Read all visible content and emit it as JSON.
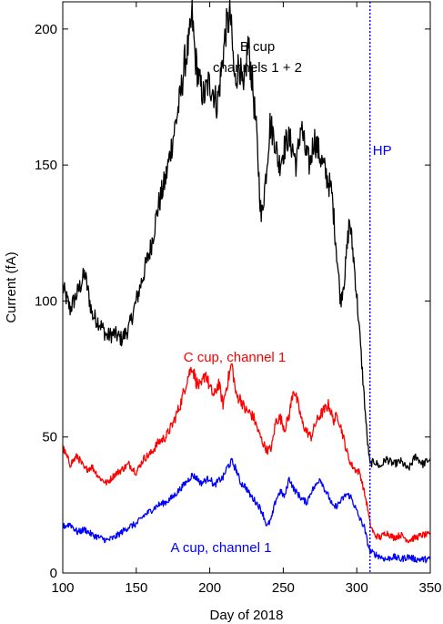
{
  "chart_data": {
    "type": "line",
    "xlabel": "Day of 2018",
    "ylabel": "Current (fA)",
    "xlim": [
      100,
      350
    ],
    "ylim": [
      0,
      210
    ],
    "xticks": [
      100,
      150,
      200,
      250,
      300,
      350
    ],
    "yticks": [
      0,
      50,
      100,
      150,
      200
    ],
    "grid": false,
    "vline": {
      "x": 309,
      "label": "HP",
      "color": "#0000ff"
    },
    "annotations": [
      {
        "text": "B cup",
        "color": "#000000"
      },
      {
        "text": "channels 1 + 2",
        "color": "#000000"
      },
      {
        "text": "C cup, channel 1",
        "color": "#ff0000"
      },
      {
        "text": "A cup, channel 1",
        "color": "#0000ff"
      }
    ],
    "series": [
      {
        "color": "#000000",
        "x": [
          100,
          105,
          110,
          115,
          120,
          125,
          130,
          135,
          140,
          145,
          150,
          155,
          160,
          165,
          170,
          175,
          180,
          183,
          186,
          188,
          190,
          193,
          196,
          199,
          202,
          205,
          208,
          211,
          214,
          217,
          220,
          223,
          226,
          229,
          232,
          235,
          238,
          241,
          244,
          247,
          250,
          253,
          256,
          259,
          262,
          265,
          268,
          271,
          274,
          277,
          280,
          283,
          286,
          289,
          292,
          295,
          298,
          301,
          303,
          305,
          307,
          309,
          312,
          316,
          320,
          325,
          330,
          335,
          340,
          345,
          350
        ],
        "y": [
          105,
          97,
          103,
          110,
          95,
          92,
          87,
          88,
          86,
          90,
          100,
          110,
          120,
          135,
          145,
          160,
          175,
          188,
          195,
          205,
          190,
          180,
          175,
          180,
          178,
          172,
          185,
          200,
          205,
          180,
          188,
          175,
          195,
          180,
          160,
          130,
          145,
          165,
          160,
          150,
          155,
          160,
          157,
          150,
          165,
          155,
          150,
          160,
          155,
          150,
          145,
          140,
          120,
          100,
          110,
          130,
          115,
          95,
          80,
          65,
          50,
          40,
          41,
          39,
          42,
          40,
          41,
          38,
          43,
          40,
          42
        ]
      },
      {
        "color": "#ff0000",
        "x": [
          100,
          105,
          110,
          115,
          120,
          125,
          130,
          135,
          140,
          145,
          150,
          155,
          160,
          165,
          170,
          175,
          180,
          185,
          188,
          191,
          194,
          197,
          200,
          203,
          206,
          209,
          212,
          215,
          218,
          221,
          224,
          227,
          230,
          233,
          236,
          239,
          242,
          245,
          248,
          251,
          254,
          257,
          260,
          263,
          266,
          269,
          272,
          275,
          278,
          281,
          284,
          287,
          290,
          293,
          296,
          299,
          302,
          305,
          307,
          309,
          312,
          316,
          320,
          325,
          330,
          335,
          340,
          345,
          350
        ],
        "y": [
          46,
          40,
          43,
          38,
          39,
          35,
          33,
          36,
          38,
          40,
          37,
          42,
          44,
          48,
          50,
          55,
          62,
          72,
          76,
          70,
          68,
          74,
          68,
          65,
          70,
          62,
          70,
          77,
          65,
          64,
          60,
          59,
          57,
          52,
          48,
          45,
          46,
          56,
          57,
          53,
          58,
          68,
          62,
          55,
          52,
          50,
          55,
          58,
          60,
          62,
          56,
          58,
          52,
          45,
          40,
          38,
          37,
          30,
          25,
          18,
          14,
          13,
          15,
          13,
          14,
          12,
          13,
          14,
          14
        ]
      },
      {
        "color": "#0000ff",
        "x": [
          100,
          105,
          110,
          115,
          120,
          125,
          130,
          135,
          140,
          145,
          150,
          155,
          160,
          165,
          170,
          175,
          180,
          185,
          188,
          191,
          194,
          197,
          200,
          203,
          206,
          209,
          212,
          215,
          218,
          221,
          224,
          227,
          230,
          233,
          236,
          239,
          242,
          245,
          248,
          251,
          254,
          257,
          260,
          263,
          266,
          269,
          272,
          275,
          278,
          281,
          284,
          287,
          290,
          293,
          296,
          299,
          302,
          305,
          307,
          309,
          312,
          316,
          320,
          325,
          330,
          335,
          340,
          345,
          350
        ],
        "y": [
          17,
          18,
          15,
          16,
          14,
          13,
          12,
          13,
          15,
          17,
          18,
          21,
          23,
          25,
          26,
          28,
          31,
          34,
          36,
          35,
          33,
          34,
          35,
          32,
          34,
          35,
          39,
          41,
          38,
          33,
          32,
          29,
          27,
          25,
          22,
          17,
          20,
          27,
          30,
          28,
          35,
          31,
          29,
          27,
          26,
          30,
          32,
          35,
          31,
          28,
          24,
          25,
          27,
          29,
          28,
          24,
          20,
          17,
          12,
          8,
          7,
          6,
          5,
          6,
          5,
          6,
          5,
          5,
          5
        ]
      }
    ]
  }
}
